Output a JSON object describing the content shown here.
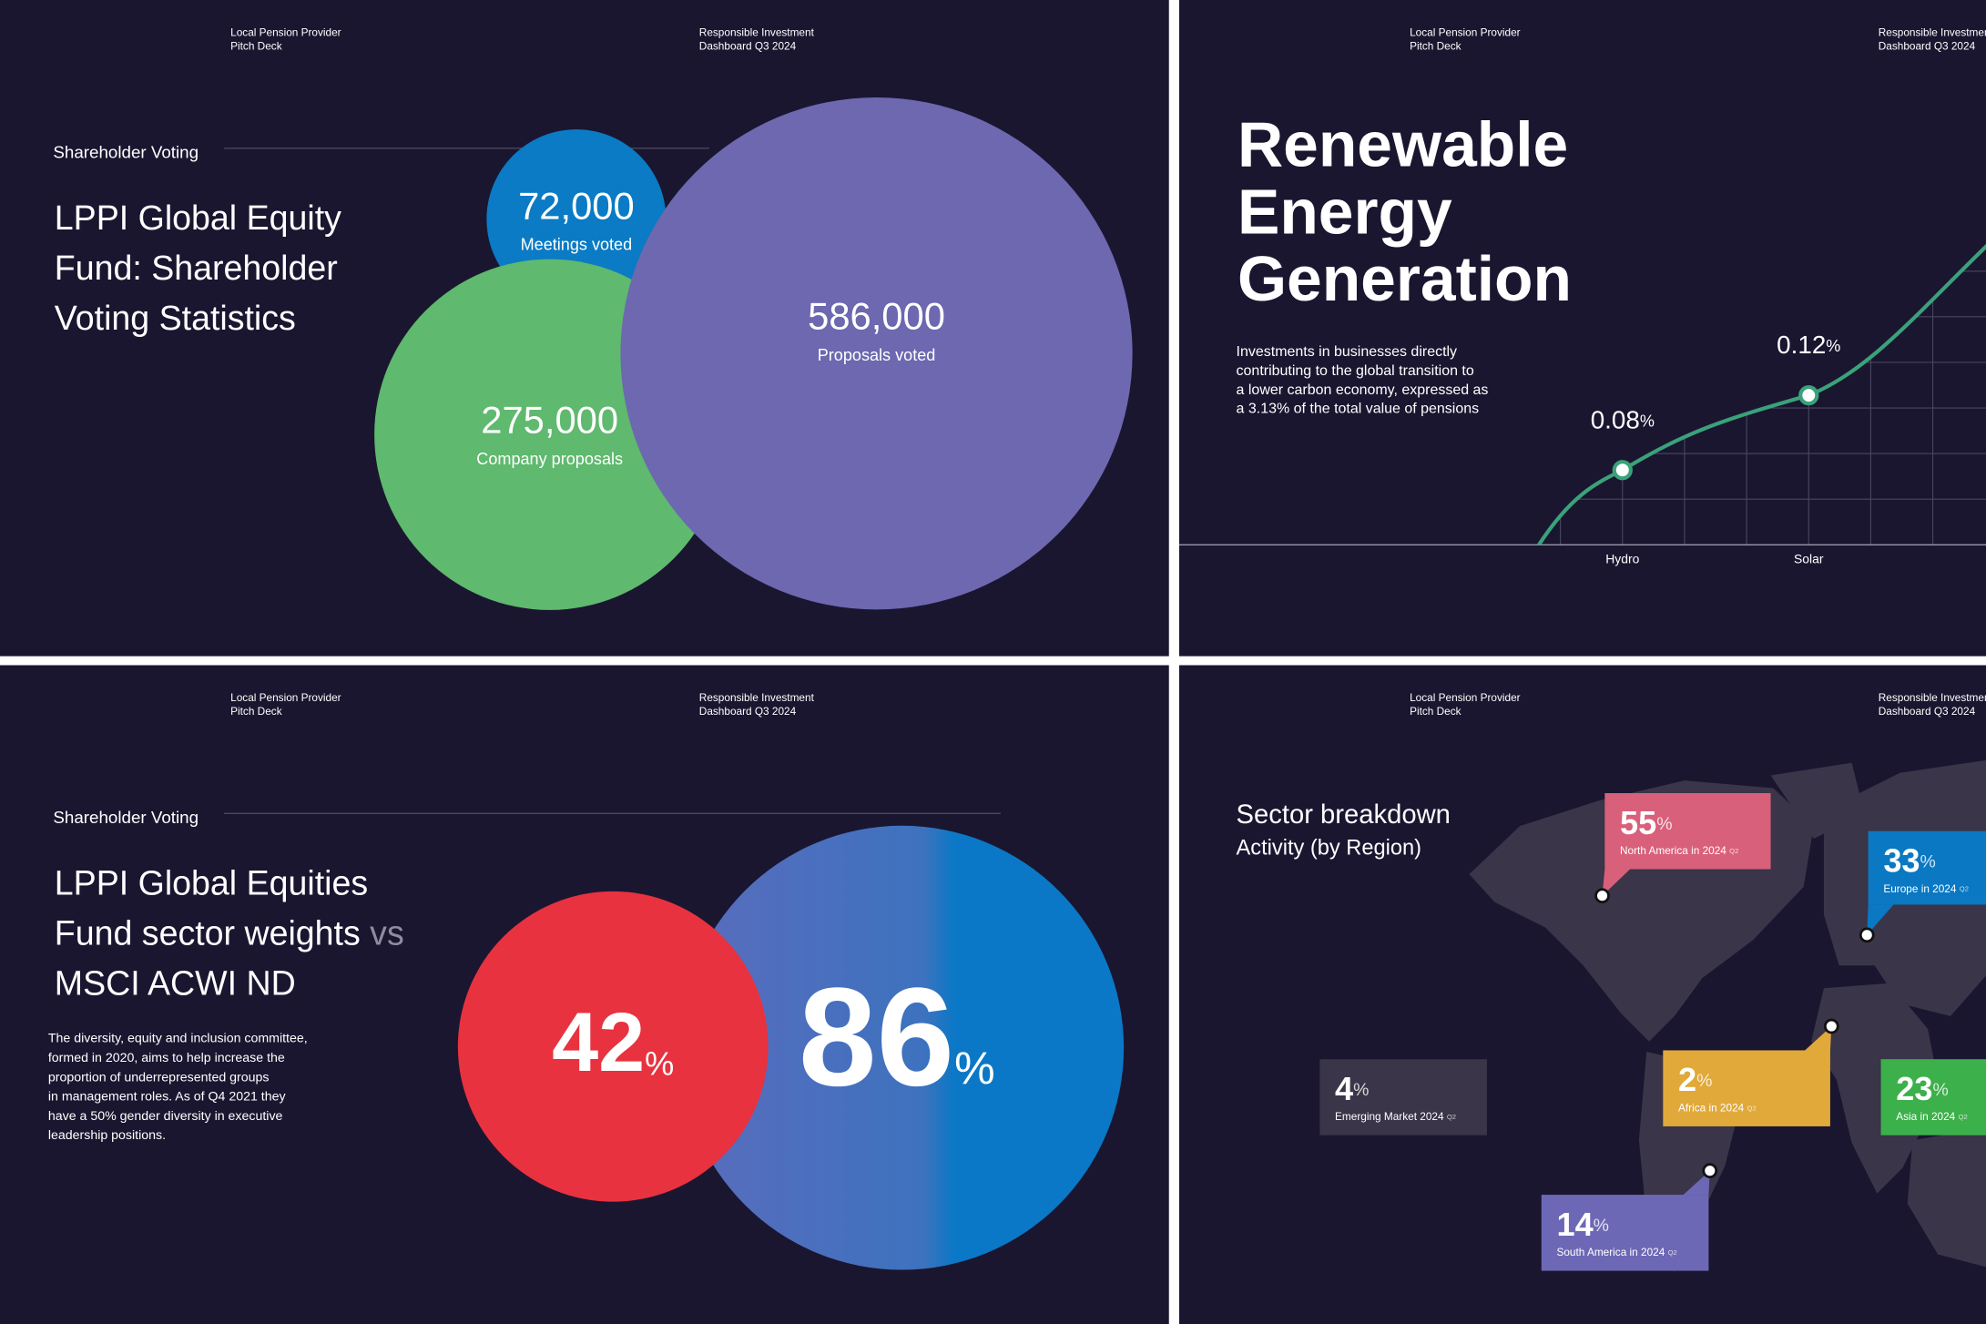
{
  "slides": [
    {
      "header": {
        "left": [
          "Local Pension Provider",
          "Pitch Deck"
        ],
        "right": [
          "Responsible Investment",
          "Dashboard Q3 2024"
        ]
      },
      "section": "Shareholder Voting",
      "title": [
        "LPPI Global Equity",
        "Fund: Shareholder",
        "Voting Statistics"
      ],
      "chart_data": {
        "type": "bubble",
        "categories": [
          "Meetings voted",
          "Company proposals",
          "Proposals voted"
        ],
        "values": [
          72000,
          275000,
          586000
        ],
        "value_labels": [
          "72,000",
          "275,000",
          "586,000"
        ],
        "colors": [
          "#0a7bc4",
          "#5fb96e",
          "#6d68b0"
        ]
      }
    },
    {
      "header": {
        "left": [
          "Local Pension Provider",
          "Pitch Deck"
        ],
        "right": [
          "Responsible Investment",
          "Dashboard Q3 2024"
        ]
      },
      "title": [
        "Renewable",
        "Energy",
        "Generation"
      ],
      "title_color": "#e3a93c",
      "description": [
        "Investments in businesses directly",
        "contributing to the global transition to",
        "a lower carbon economy, expressed as",
        "a 3.13% of the total value of pensions"
      ],
      "chart_data": {
        "type": "line",
        "categories": [
          "Hydro",
          "Solar"
        ],
        "values": [
          0.08,
          0.12
        ],
        "unit": "%",
        "color": "#3aa27a",
        "ylim": [
          0.04,
          0.3
        ]
      }
    },
    {
      "header": {
        "left": [
          "Local Pension Provider",
          "Pitch Deck"
        ],
        "right": [
          "Responsible Investment",
          "Dashboard Q3 2024"
        ]
      },
      "section": "Shareholder Voting",
      "title": {
        "lines": [
          "LPPI Global Equities",
          "Fund sector weights",
          "MSCI ACWI ND"
        ],
        "connector": "vs"
      },
      "paragraph": [
        "The diversity, equity and inclusion committee,",
        "formed in 2020, aims to help increase the",
        "proportion of underrepresented groups",
        "in management roles. As of Q4 2021 they",
        "have a 50% gender diversity in executive",
        "leadership positions."
      ],
      "chart_data": {
        "type": "bubble-pair",
        "values": [
          42,
          86
        ],
        "unit": "%",
        "colors": [
          "#e8323f",
          "#0a78c6"
        ]
      }
    },
    {
      "header": {
        "left": [
          "Local Pension Provider",
          "Pitch Deck"
        ],
        "right": [
          "Responsible Investment",
          "Dashboard Q3 2024"
        ]
      },
      "title": "Sector breakdown",
      "subtitle": "Activity (by Region)",
      "unit": "%",
      "regions": [
        {
          "value": 55,
          "label": "North America in 2024",
          "quarter": "Q2",
          "color": "#d9607a"
        },
        {
          "value": 33,
          "label": "Europe in 2024",
          "quarter": "Q2",
          "color": "#0a78c2"
        },
        {
          "value": 4,
          "label": "Emerging Market 2024",
          "quarter": "Q2",
          "color": "#3a3548"
        },
        {
          "value": 2,
          "label": "Africa in 2024",
          "quarter": "Q2",
          "color": "#e0a93a"
        },
        {
          "value": 23,
          "label": "Asia in 2024",
          "quarter": "Q2",
          "color": "#3cb04a"
        },
        {
          "value": 14,
          "label": "South America in 2024",
          "quarter": "Q2",
          "color": "#6d68b5"
        }
      ]
    }
  ]
}
